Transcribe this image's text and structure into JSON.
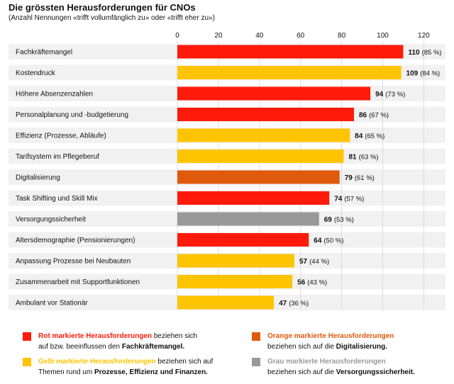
{
  "chart_data": {
    "type": "bar",
    "orientation": "horizontal",
    "title": "Die grössten Herausforderungen für CNOs",
    "subtitle": "(Anzahl Nennungen «trifft vollumfänglich zu» oder «trifft eher zu»)",
    "xlim": [
      0,
      130
    ],
    "ticks": [
      0,
      20,
      40,
      60,
      80,
      100,
      120
    ],
    "grid": true,
    "categories": [
      "Fachkräftemangel",
      "Kostendruck",
      "Höhere Absenzenzahlen",
      "Personalplanung und -budgetierung",
      "Effizienz (Prozesse, Abläufe)",
      "Tarifsystem im Pflegeberuf",
      "Digitalisierung",
      "Task Shifting und Skill Mix",
      "Versorgungssicherheit",
      "Altersdemographie (Pensionierungen)",
      "Anpassung Prozesse bei Neubauten",
      "Zusammenarbeit mit Supportfunktionen",
      "Ambulant vor Stationär"
    ],
    "values": [
      110,
      109,
      94,
      86,
      84,
      81,
      79,
      74,
      69,
      64,
      57,
      56,
      47
    ],
    "value_labels": [
      "110",
      "109",
      "94",
      "86",
      "84",
      "81",
      "79",
      "74",
      "69",
      "64",
      "57",
      "56",
      "47"
    ],
    "percent_labels": [
      "(85 %)",
      "(84 %)",
      "(73 %)",
      "(67 %)",
      "(65 %)",
      "(63 %)",
      "(61 %)",
      "(57 %)",
      "(53 %)",
      "(50 %)",
      "(44 %)",
      "(43 %)",
      "(36 %)"
    ],
    "bar_categories": [
      "red",
      "yellow",
      "red",
      "red",
      "yellow",
      "yellow",
      "orange",
      "red",
      "grey",
      "red",
      "yellow",
      "yellow",
      "yellow"
    ]
  },
  "colors": {
    "red": "#ff1a0a",
    "yellow": "#ffc400",
    "orange": "#e05a0c",
    "grey": "#999999",
    "row_band": "#f1f1f1",
    "grid": "#dcdcdc"
  },
  "legend": {
    "red": {
      "lead": "Rot markierte Herausforderungen",
      "line1_rest": " beziehen sich",
      "line2_plain": "auf bzw. beeinflussen den ",
      "line2_bold": "Fachkräftemangel."
    },
    "yellow": {
      "lead": "Gelb markierte Herausforderungen",
      "line1_rest": " beziehen sich auf",
      "line2_plain": "Themen rund um ",
      "line2_bold": "Prozesse, Effizienz und Finanzen."
    },
    "orange": {
      "lead": "Orange markierte Herausforderungen",
      "line2_plain": "beziehen sich auf die ",
      "line2_bold": "Digitalisierung."
    },
    "grey": {
      "lead": "Grau markierte Herausforderungen",
      "line2_plain": "beziehen sich auf die ",
      "line2_bold": "Versorgungssicherheit."
    }
  }
}
